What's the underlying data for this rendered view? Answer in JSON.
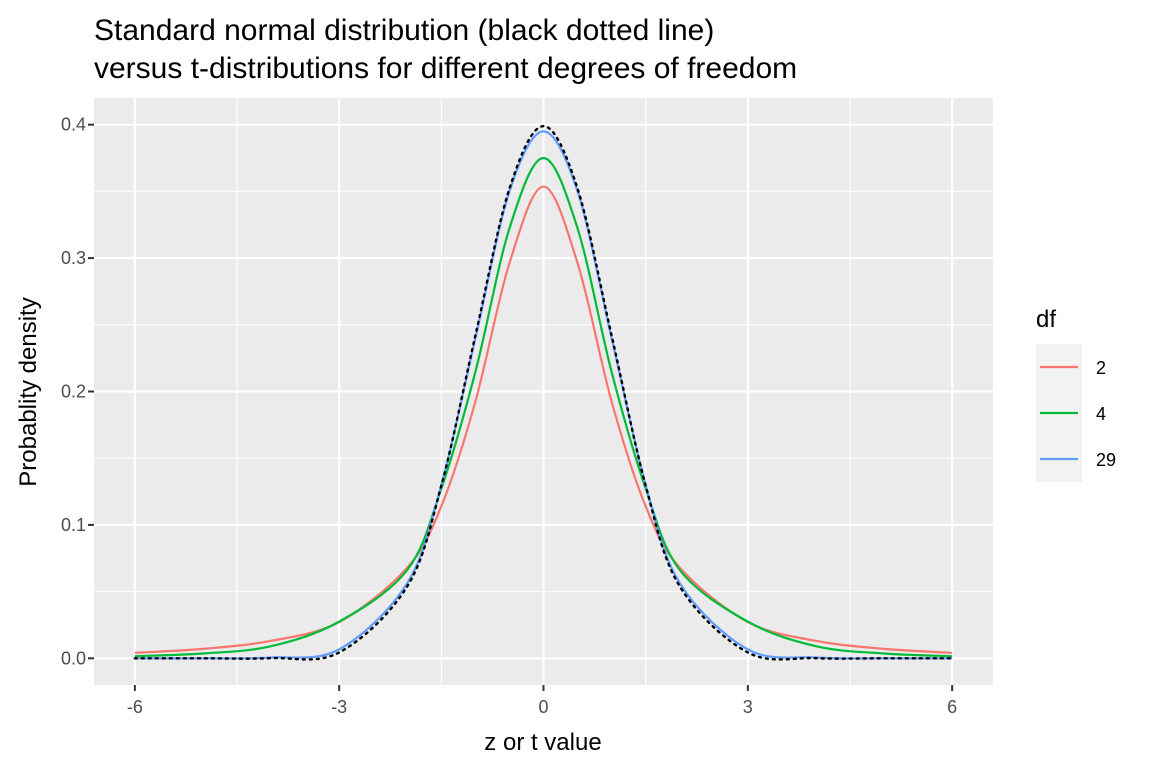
{
  "chart_data": {
    "type": "line",
    "title_lines": [
      "Standard normal distribution (black dotted line)",
      "versus t-distributions for different degrees of freedom"
    ],
    "xlabel": "z or t value",
    "ylabel": "Probablity density",
    "xlim": [
      -6.6,
      6.6
    ],
    "ylim": [
      -0.02,
      0.42
    ],
    "x_ticks": [
      -6,
      -3,
      0,
      3,
      6
    ],
    "x_tick_labels": [
      "-6",
      "-3",
      "0",
      "3",
      "6"
    ],
    "y_ticks": [
      0.0,
      0.1,
      0.2,
      0.3,
      0.4
    ],
    "y_tick_labels": [
      "0.0",
      "0.1",
      "0.2",
      "0.3",
      "0.4"
    ],
    "grid": true,
    "legend_position": "right",
    "legend_title": "df",
    "x": [
      -6,
      -5,
      -4,
      -3,
      -2,
      -1.5,
      -1,
      -0.5,
      0,
      0.5,
      1,
      1.5,
      2,
      3,
      4,
      5,
      6
    ],
    "series": [
      {
        "name": "2",
        "color": "#F8766D",
        "values": [
          0.0041,
          0.0071,
          0.0131,
          0.0272,
          0.068,
          0.114,
          0.1925,
          0.2962,
          0.3536,
          0.2962,
          0.1925,
          0.114,
          0.068,
          0.0272,
          0.0131,
          0.0071,
          0.0041
        ]
      },
      {
        "name": "4",
        "color": "#00BA38",
        "values": [
          0.0016,
          0.0036,
          0.0091,
          0.0275,
          0.0663,
          0.1273,
          0.2147,
          0.3223,
          0.375,
          0.3223,
          0.2147,
          0.1273,
          0.0663,
          0.0275,
          0.0091,
          0.0036,
          0.0016
        ]
      },
      {
        "name": "29",
        "color": "#619CFF",
        "values": [
          0.0,
          0.0,
          0.0006,
          0.0067,
          0.0564,
          0.13,
          0.24,
          0.35,
          0.395,
          0.35,
          0.24,
          0.13,
          0.0564,
          0.0067,
          0.0006,
          0.0,
          0.0
        ]
      }
    ],
    "reference": {
      "name": "standard normal",
      "color": "#000000",
      "style": "dotted",
      "x": [
        -6,
        -5,
        -4,
        -3,
        -2,
        -1.5,
        -1,
        -0.5,
        0,
        0.5,
        1,
        1.5,
        2,
        3,
        4,
        5,
        6
      ],
      "values": [
        0.0,
        0.0,
        0.0001,
        0.0044,
        0.054,
        0.1295,
        0.242,
        0.3521,
        0.3989,
        0.3521,
        0.242,
        0.1295,
        0.054,
        0.0044,
        0.0001,
        0.0,
        0.0
      ]
    }
  }
}
